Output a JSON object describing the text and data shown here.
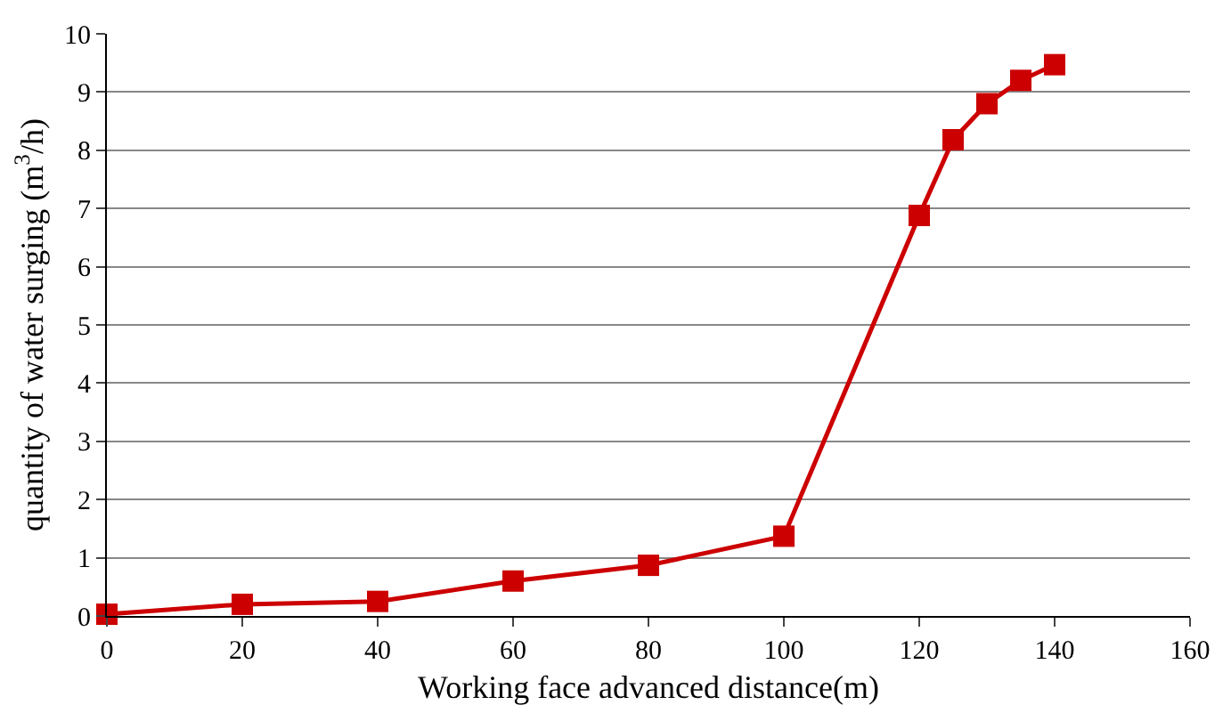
{
  "chart_data": {
    "type": "line",
    "xlabel": "Working face advanced distance(m)",
    "ylabel": "quantity of water surging (m$^{3}$/h)",
    "x": [
      0,
      20,
      40,
      60,
      80,
      100,
      120,
      125,
      130,
      135,
      140
    ],
    "series": [
      {
        "color": "#cc0000",
        "values": [
          0.03,
          0.2,
          0.25,
          0.6,
          0.87,
          1.37,
          6.88,
          8.18,
          8.8,
          9.2,
          9.47
        ]
      }
    ],
    "xlim": [
      0,
      160
    ],
    "xticks": [
      0,
      20,
      40,
      60,
      80,
      100,
      120,
      140,
      160
    ],
    "ylim": [
      0,
      10
    ],
    "yticks": [
      0,
      1,
      2,
      3,
      4,
      5,
      6,
      7,
      8,
      9,
      10
    ],
    "grid": "y",
    "legend": false,
    "marker": "square",
    "line_style": "solid"
  }
}
